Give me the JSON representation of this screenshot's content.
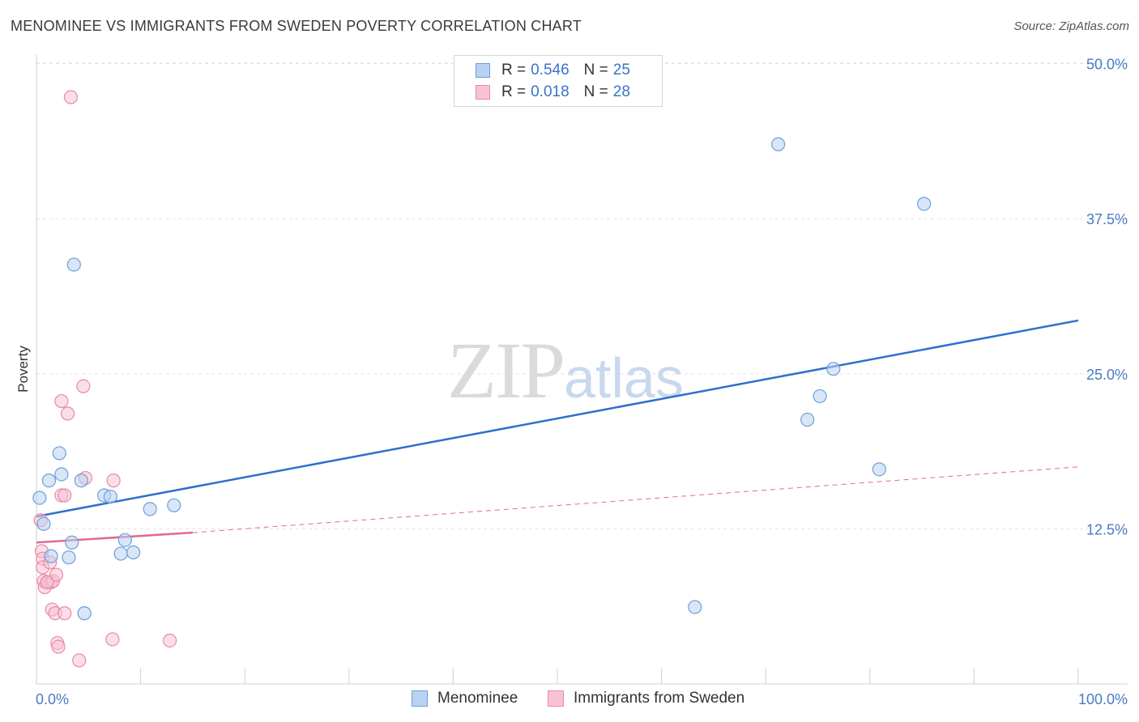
{
  "header": {
    "title": "MENOMINEE VS IMMIGRANTS FROM SWEDEN POVERTY CORRELATION CHART",
    "source": "Source: ZipAtlas.com"
  },
  "watermark": {
    "zip": "ZIP",
    "atlas": "atlas"
  },
  "legend": {
    "rows": [
      {
        "r_label": "R =",
        "r_value": "0.546",
        "n_label": "N =",
        "n_value": "25"
      },
      {
        "r_label": "R =",
        "r_value": "0.018",
        "n_label": "N =",
        "n_value": "28"
      }
    ]
  },
  "bottom_legend": {
    "series1": "Menominee",
    "series2": "Immigrants from Sweden"
  },
  "colors": {
    "blue_fill": "#b8d2f2",
    "blue_stroke": "#6e9fd8",
    "blue_line": "#2f6fcc",
    "pink_fill": "#f7c3d3",
    "pink_stroke": "#e88aa6",
    "pink_line": "#e06a93",
    "grid": "#e2e2e2",
    "tick_text": "#4a7bc4"
  },
  "chart_data": {
    "type": "scatter",
    "title": "MENOMINEE VS IMMIGRANTS FROM SWEDEN POVERTY CORRELATION CHART",
    "xlabel": "",
    "ylabel": "Poverty",
    "xlim": [
      0,
      100
    ],
    "ylim": [
      0,
      52
    ],
    "x_tick_labels": [
      "0.0%",
      "100.0%"
    ],
    "y_ticks": [
      12.5,
      25.0,
      37.5,
      50.0
    ],
    "y_tick_labels": [
      "12.5%",
      "25.0%",
      "37.5%",
      "50.0%"
    ],
    "grid": true,
    "series": [
      {
        "name": "Menominee",
        "R": 0.546,
        "N": 25,
        "points": [
          {
            "x": 0.3,
            "y": 15.0
          },
          {
            "x": 0.7,
            "y": 12.9
          },
          {
            "x": 1.2,
            "y": 16.4
          },
          {
            "x": 1.4,
            "y": 10.3
          },
          {
            "x": 2.2,
            "y": 18.6
          },
          {
            "x": 2.4,
            "y": 16.9
          },
          {
            "x": 3.1,
            "y": 10.2
          },
          {
            "x": 3.4,
            "y": 11.4
          },
          {
            "x": 3.6,
            "y": 33.8
          },
          {
            "x": 4.3,
            "y": 16.4
          },
          {
            "x": 4.6,
            "y": 5.7
          },
          {
            "x": 6.5,
            "y": 15.2
          },
          {
            "x": 7.1,
            "y": 15.1
          },
          {
            "x": 8.1,
            "y": 10.5
          },
          {
            "x": 8.5,
            "y": 11.6
          },
          {
            "x": 9.3,
            "y": 10.6
          },
          {
            "x": 10.9,
            "y": 14.1
          },
          {
            "x": 13.2,
            "y": 14.4
          },
          {
            "x": 63.2,
            "y": 6.2
          },
          {
            "x": 71.2,
            "y": 43.5
          },
          {
            "x": 74.0,
            "y": 21.3
          },
          {
            "x": 75.2,
            "y": 23.2
          },
          {
            "x": 76.5,
            "y": 25.4
          },
          {
            "x": 80.9,
            "y": 17.3
          },
          {
            "x": 85.2,
            "y": 38.7
          }
        ],
        "trend": {
          "x0": 0,
          "y0": 13.5,
          "x1": 100,
          "y1": 29.3
        }
      },
      {
        "name": "Immigrants from Sweden",
        "R": 0.018,
        "N": 28,
        "points": [
          {
            "x": 0.4,
            "y": 13.2
          },
          {
            "x": 0.5,
            "y": 10.7
          },
          {
            "x": 0.6,
            "y": 10.1
          },
          {
            "x": 0.6,
            "y": 9.4
          },
          {
            "x": 0.7,
            "y": 8.3
          },
          {
            "x": 0.8,
            "y": 7.8
          },
          {
            "x": 1.1,
            "y": 8.2
          },
          {
            "x": 1.3,
            "y": 9.8
          },
          {
            "x": 1.4,
            "y": 8.2
          },
          {
            "x": 1.5,
            "y": 6.0
          },
          {
            "x": 1.6,
            "y": 8.3
          },
          {
            "x": 1.8,
            "y": 5.7
          },
          {
            "x": 1.9,
            "y": 8.8
          },
          {
            "x": 2.0,
            "y": 3.3
          },
          {
            "x": 2.1,
            "y": 3.0
          },
          {
            "x": 2.4,
            "y": 15.2
          },
          {
            "x": 2.4,
            "y": 22.8
          },
          {
            "x": 2.7,
            "y": 5.7
          },
          {
            "x": 2.7,
            "y": 15.2
          },
          {
            "x": 3.0,
            "y": 21.8
          },
          {
            "x": 3.3,
            "y": 47.3
          },
          {
            "x": 4.1,
            "y": 1.9
          },
          {
            "x": 4.5,
            "y": 24.0
          },
          {
            "x": 4.7,
            "y": 16.6
          },
          {
            "x": 7.3,
            "y": 3.6
          },
          {
            "x": 7.4,
            "y": 16.4
          },
          {
            "x": 12.8,
            "y": 3.5
          },
          {
            "x": 1.0,
            "y": 8.2
          }
        ],
        "trend_solid": {
          "x0": 0,
          "y0": 11.4,
          "x1": 15,
          "y1": 12.2
        },
        "trend_dashed": {
          "x0": 15,
          "y0": 12.2,
          "x1": 100,
          "y1": 17.5
        }
      }
    ]
  }
}
